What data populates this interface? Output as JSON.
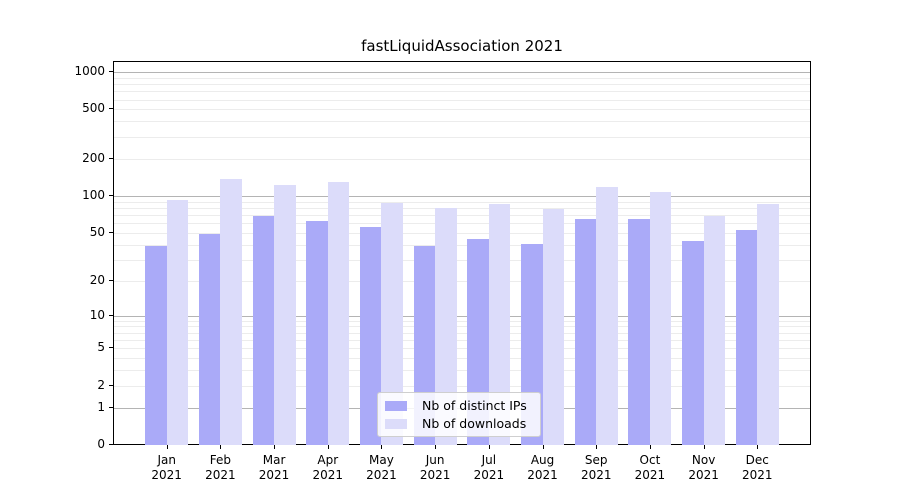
{
  "chart_data": {
    "type": "bar",
    "title": "fastLiquidAssociation 2021",
    "categories_month": [
      "Jan",
      "Feb",
      "Mar",
      "Apr",
      "May",
      "Jun",
      "Jul",
      "Aug",
      "Sep",
      "Oct",
      "Nov",
      "Dec"
    ],
    "categories_year": "2021",
    "series": [
      {
        "name": "Nb of distinct IPs",
        "color": "#aaaaf8",
        "values": [
          40,
          50,
          70,
          64,
          57,
          40,
          45,
          41,
          66,
          66,
          44,
          54
        ]
      },
      {
        "name": "Nb of downloads",
        "color": "#dcdcfa",
        "values": [
          95,
          140,
          125,
          132,
          89,
          81,
          88,
          80,
          120,
          110,
          70,
          88
        ]
      }
    ],
    "y_axis": {
      "scale": "log10(1+x)",
      "ticks": [
        0,
        1,
        2,
        5,
        10,
        20,
        50,
        100,
        200,
        500,
        1000
      ],
      "range_top": 1228
    },
    "x_axis": {
      "range": [
        -1,
        12
      ]
    },
    "grid": {
      "major_values": [
        1,
        10,
        100,
        1000
      ],
      "minor_base": [
        2,
        3,
        4,
        5,
        6,
        7,
        8,
        9
      ],
      "major_color": "#b4b4b4",
      "minor_color": "#ececec"
    },
    "legend_position": "lower center",
    "colors": {
      "spine": "#000000",
      "background": "#ffffff",
      "text": "#000000"
    }
  }
}
